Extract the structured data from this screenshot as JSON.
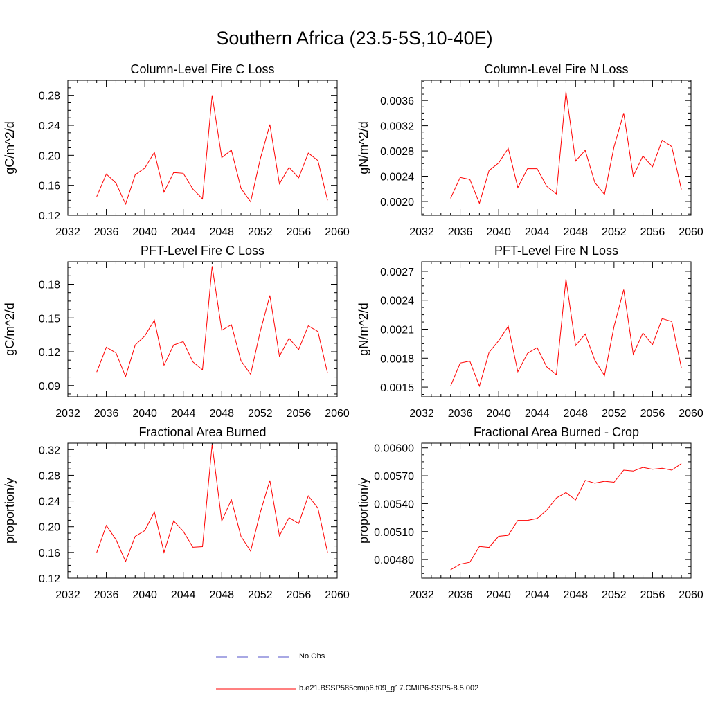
{
  "title": "Southern Africa (23.5-5S,10-40E)",
  "chart_data": [
    {
      "type": "line",
      "title": "Column-Level Fire C Loss",
      "ylabel": "gC/m^2/d",
      "xlim": [
        2032,
        2060
      ],
      "ylim": [
        0.12,
        0.3
      ],
      "xticks": [
        "2032",
        "2036",
        "2040",
        "2044",
        "2048",
        "2052",
        "2056",
        "2060"
      ],
      "yticks": [
        "0.12",
        "0.16",
        "0.20",
        "0.24",
        "0.28"
      ],
      "x": [
        2035,
        2036,
        2037,
        2038,
        2039,
        2040,
        2041,
        2042,
        2043,
        2044,
        2045,
        2046,
        2047,
        2048,
        2049,
        2050,
        2051,
        2052,
        2053,
        2054,
        2055,
        2056,
        2057,
        2058,
        2059
      ],
      "series": [
        {
          "name": "b.e21.BSSP585cmip6.f09_g17.CMIP6-SSP5-8.5.002",
          "color": "#ff0000",
          "values": [
            0.145,
            0.175,
            0.163,
            0.135,
            0.174,
            0.183,
            0.204,
            0.151,
            0.177,
            0.176,
            0.155,
            0.142,
            0.28,
            0.197,
            0.207,
            0.156,
            0.138,
            0.195,
            0.241,
            0.162,
            0.184,
            0.17,
            0.203,
            0.193,
            0.14
          ]
        }
      ]
    },
    {
      "type": "line",
      "title": "Column-Level Fire N Loss",
      "ylabel": "gN/m^2/d",
      "xlim": [
        2032,
        2060
      ],
      "ylim": [
        0.00178,
        0.00392
      ],
      "xticks": [
        "2032",
        "2036",
        "2040",
        "2044",
        "2048",
        "2052",
        "2056",
        "2060"
      ],
      "yticks": [
        "0.0020",
        "0.0024",
        "0.0028",
        "0.0032",
        "0.0036"
      ],
      "x": [
        2035,
        2036,
        2037,
        2038,
        2039,
        2040,
        2041,
        2042,
        2043,
        2044,
        2045,
        2046,
        2047,
        2048,
        2049,
        2050,
        2051,
        2052,
        2053,
        2054,
        2055,
        2056,
        2057,
        2058,
        2059
      ],
      "series": [
        {
          "name": "b.e21.BSSP585cmip6.f09_g17.CMIP6-SSP5-8.5.002",
          "color": "#ff0000",
          "values": [
            0.00205,
            0.00238,
            0.00235,
            0.00197,
            0.00249,
            0.00261,
            0.00284,
            0.00222,
            0.00252,
            0.00252,
            0.00224,
            0.00212,
            0.00374,
            0.00264,
            0.00281,
            0.0023,
            0.00211,
            0.00287,
            0.0034,
            0.0024,
            0.00272,
            0.00255,
            0.00297,
            0.00287,
            0.00219
          ]
        }
      ]
    },
    {
      "type": "line",
      "title": "PFT-Level Fire C Loss",
      "ylabel": "gC/m^2/d",
      "xlim": [
        2032,
        2060
      ],
      "ylim": [
        0.08,
        0.2
      ],
      "xticks": [
        "2032",
        "2036",
        "2040",
        "2044",
        "2048",
        "2052",
        "2056",
        "2060"
      ],
      "yticks": [
        "0.09",
        "0.12",
        "0.15",
        "0.18"
      ],
      "x": [
        2035,
        2036,
        2037,
        2038,
        2039,
        2040,
        2041,
        2042,
        2043,
        2044,
        2045,
        2046,
        2047,
        2048,
        2049,
        2050,
        2051,
        2052,
        2053,
        2054,
        2055,
        2056,
        2057,
        2058,
        2059
      ],
      "series": [
        {
          "name": "b.e21.BSSP585cmip6.f09_g17.CMIP6-SSP5-8.5.002",
          "color": "#ff0000",
          "values": [
            0.102,
            0.124,
            0.119,
            0.098,
            0.126,
            0.134,
            0.148,
            0.108,
            0.126,
            0.129,
            0.111,
            0.104,
            0.196,
            0.139,
            0.144,
            0.112,
            0.1,
            0.138,
            0.17,
            0.116,
            0.132,
            0.122,
            0.143,
            0.138,
            0.101
          ]
        }
      ]
    },
    {
      "type": "line",
      "title": "PFT-Level Fire N Loss",
      "ylabel": "gN/m^2/d",
      "xlim": [
        2032,
        2060
      ],
      "ylim": [
        0.0014,
        0.0028
      ],
      "xticks": [
        "2032",
        "2036",
        "2040",
        "2044",
        "2048",
        "2052",
        "2056",
        "2060"
      ],
      "yticks": [
        "0.0015",
        "0.0018",
        "0.0021",
        "0.0024",
        "0.0027"
      ],
      "x": [
        2035,
        2036,
        2037,
        2038,
        2039,
        2040,
        2041,
        2042,
        2043,
        2044,
        2045,
        2046,
        2047,
        2048,
        2049,
        2050,
        2051,
        2052,
        2053,
        2054,
        2055,
        2056,
        2057,
        2058,
        2059
      ],
      "series": [
        {
          "name": "b.e21.BSSP585cmip6.f09_g17.CMIP6-SSP5-8.5.002",
          "color": "#ff0000",
          "values": [
            0.00151,
            0.00175,
            0.00177,
            0.00151,
            0.00186,
            0.00198,
            0.00213,
            0.00166,
            0.00185,
            0.00191,
            0.00171,
            0.00163,
            0.00262,
            0.00193,
            0.00205,
            0.00178,
            0.00162,
            0.00213,
            0.00251,
            0.00184,
            0.00206,
            0.00194,
            0.00221,
            0.00218,
            0.0017
          ]
        }
      ]
    },
    {
      "type": "line",
      "title": "Fractional Area Burned",
      "ylabel": "proportion/y",
      "xlim": [
        2032,
        2060
      ],
      "ylim": [
        0.12,
        0.33
      ],
      "xticks": [
        "2032",
        "2036",
        "2040",
        "2044",
        "2048",
        "2052",
        "2056",
        "2060"
      ],
      "yticks": [
        "0.12",
        "0.16",
        "0.20",
        "0.24",
        "0.28",
        "0.32"
      ],
      "x": [
        2035,
        2036,
        2037,
        2038,
        2039,
        2040,
        2041,
        2042,
        2043,
        2044,
        2045,
        2046,
        2047,
        2048,
        2049,
        2050,
        2051,
        2052,
        2053,
        2054,
        2055,
        2056,
        2057,
        2058,
        2059
      ],
      "series": [
        {
          "name": "b.e21.BSSP585cmip6.f09_g17.CMIP6-SSP5-8.5.002",
          "color": "#ff0000",
          "values": [
            0.16,
            0.202,
            0.18,
            0.146,
            0.185,
            0.194,
            0.223,
            0.16,
            0.209,
            0.193,
            0.168,
            0.169,
            0.328,
            0.209,
            0.242,
            0.185,
            0.162,
            0.222,
            0.272,
            0.186,
            0.214,
            0.205,
            0.248,
            0.229,
            0.16
          ]
        }
      ]
    },
    {
      "type": "line",
      "title": "Fractional Area Burned - Crop",
      "ylabel": "proportion/y",
      "xlim": [
        2032,
        2060
      ],
      "ylim": [
        0.0046,
        0.00605
      ],
      "xticks": [
        "2032",
        "2036",
        "2040",
        "2044",
        "2048",
        "2052",
        "2056",
        "2060"
      ],
      "yticks": [
        "0.00480",
        "0.00510",
        "0.00540",
        "0.00570",
        "0.00600"
      ],
      "x": [
        2035,
        2036,
        2037,
        2038,
        2039,
        2040,
        2041,
        2042,
        2043,
        2044,
        2045,
        2046,
        2047,
        2048,
        2049,
        2050,
        2051,
        2052,
        2053,
        2054,
        2055,
        2056,
        2057,
        2058,
        2059
      ],
      "series": [
        {
          "name": "b.e21.BSSP585cmip6.f09_g17.CMIP6-SSP5-8.5.002",
          "color": "#ff0000",
          "values": [
            0.00469,
            0.00475,
            0.00477,
            0.00494,
            0.00493,
            0.00505,
            0.00506,
            0.00522,
            0.00522,
            0.00524,
            0.00533,
            0.00546,
            0.00552,
            0.00544,
            0.00565,
            0.00562,
            0.00564,
            0.00563,
            0.00576,
            0.00575,
            0.00579,
            0.00577,
            0.00578,
            0.00576,
            0.00583
          ]
        }
      ]
    }
  ],
  "legend": {
    "entries": [
      {
        "label": "No Obs",
        "style": "dashed",
        "color": "#5050c8"
      },
      {
        "label": "b.e21.BSSP585cmip6.f09_g17.CMIP6-SSP5-8.5.002",
        "style": "solid",
        "color": "#ff0000"
      }
    ]
  }
}
